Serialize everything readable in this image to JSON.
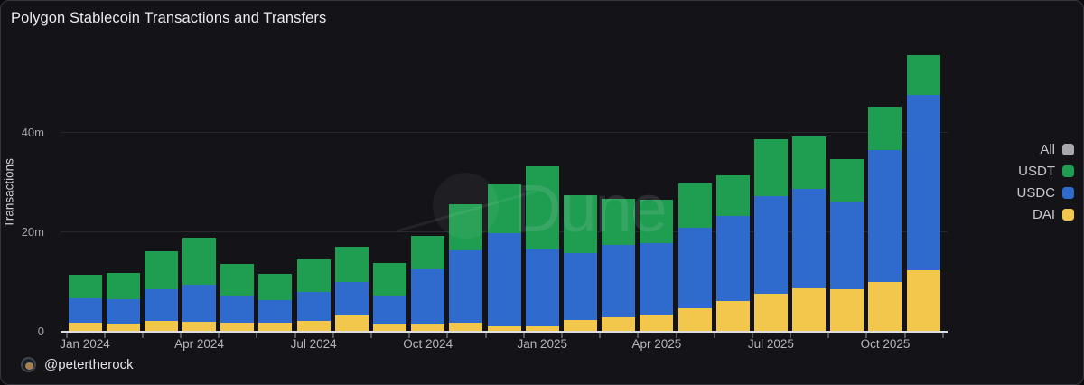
{
  "title": "Polygon Stablecoin Transactions and Transfers",
  "watermark": {
    "text": "Dune"
  },
  "footer": {
    "handle": "@petertherock"
  },
  "colors": {
    "usdt_green": "#1f9d50",
    "usdc_blue": "#2f6bcc",
    "dai_yellow": "#f2c74b",
    "all_gray": "#a7a7ad",
    "background": "#131318"
  },
  "legend": [
    {
      "label": "All",
      "color": "#a7a7ad"
    },
    {
      "label": "USDT",
      "color": "#1f9d50"
    },
    {
      "label": "USDC",
      "color": "#2f6bcc"
    },
    {
      "label": "DAI",
      "color": "#f2c74b"
    }
  ],
  "chart_data": {
    "type": "bar",
    "stacked": true,
    "title": "Polygon Stablecoin Transactions and Transfers",
    "xlabel": "",
    "ylabel": "Transactions",
    "unit": "millions of transactions",
    "ylim": [
      0,
      57.8
    ],
    "grid": true,
    "legend_position": "right",
    "categories": [
      "Jan 2024",
      "Feb 2024",
      "Mar 2024",
      "Apr 2024",
      "May 2024",
      "Jun 2024",
      "Jul 2024",
      "Aug 2024",
      "Sep 2024",
      "Oct 2024",
      "Nov 2024",
      "Dec 2024",
      "Jan 2025",
      "Feb 2025",
      "Mar 2025",
      "Apr 2025",
      "May 2025",
      "Jun 2025",
      "Jul 2025",
      "Aug 2025",
      "Sep 2025",
      "Oct 2025",
      "Nov 2025"
    ],
    "xtick_labels": [
      "Jan 2024",
      "Apr 2024",
      "Jul 2024",
      "Oct 2024",
      "Jan 2025",
      "Apr 2025",
      "Jul 2025",
      "Oct 2025"
    ],
    "xtick_indices": [
      0,
      3,
      6,
      9,
      12,
      15,
      18,
      21
    ],
    "yticks": [
      {
        "value": 0,
        "label": "0"
      },
      {
        "value": 20,
        "label": "20m"
      },
      {
        "value": 40,
        "label": "40m"
      }
    ],
    "series": [
      {
        "name": "DAI",
        "color": "#f2c74b",
        "values": [
          1.8,
          1.6,
          2.2,
          2.0,
          1.8,
          1.8,
          2.2,
          3.3,
          1.4,
          1.5,
          1.8,
          1.1,
          1.1,
          2.4,
          2.9,
          3.5,
          4.7,
          6.2,
          7.6,
          8.7,
          8.5,
          10.0,
          12.4
        ]
      },
      {
        "name": "USDC",
        "color": "#2f6bcc",
        "values": [
          4.9,
          4.9,
          6.4,
          7.5,
          5.5,
          4.5,
          5.8,
          6.7,
          5.8,
          11.1,
          14.5,
          18.7,
          15.5,
          13.5,
          14.5,
          14.4,
          16.2,
          17.1,
          19.6,
          20.0,
          17.6,
          26.5,
          35.3
        ]
      },
      {
        "name": "USDT",
        "color": "#1f9d50",
        "values": [
          4.7,
          5.3,
          7.5,
          9.5,
          6.4,
          5.3,
          6.5,
          7.1,
          6.6,
          6.7,
          9.3,
          9.8,
          16.7,
          11.5,
          9.3,
          8.7,
          8.9,
          8.2,
          11.6,
          10.5,
          8.7,
          8.7,
          8.0
        ]
      }
    ]
  }
}
